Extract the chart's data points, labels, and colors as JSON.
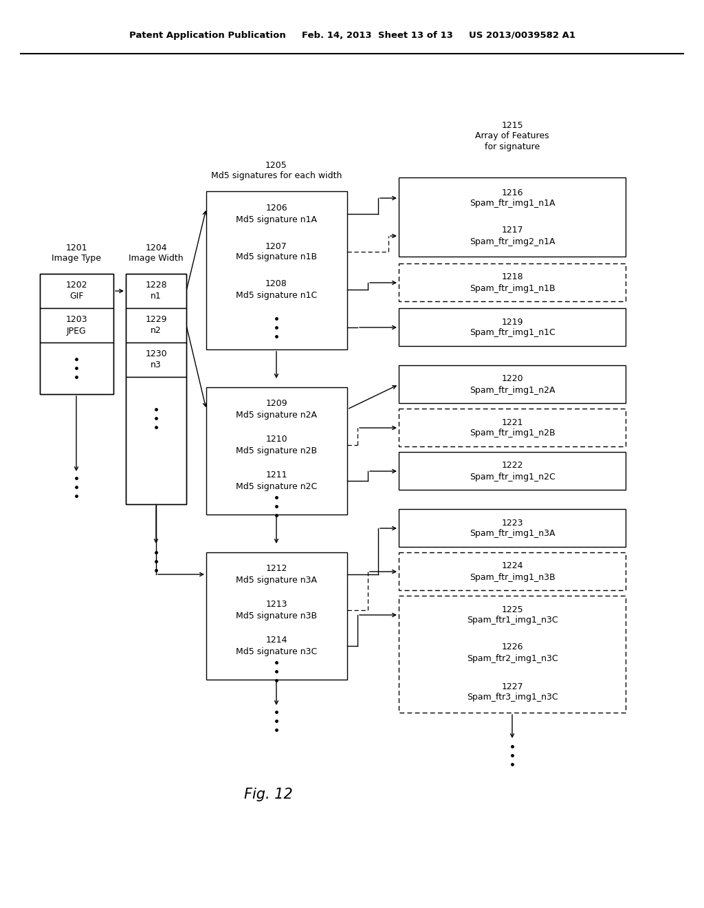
{
  "header": "Patent Application Publication     Feb. 14, 2013  Sheet 13 of 13     US 2013/0039582 A1",
  "fig_caption": "Fig. 12",
  "bg": "#ffffff",
  "labels": {
    "1201": "1201\nImage Type",
    "1202": "1202\nGIF",
    "1203": "1203\nJPEG",
    "1204": "1204\nImage Width",
    "1205": "1205\nMd5 signatures for each width",
    "1206": "1206\nMd5 signature n1A",
    "1207": "1207\nMd5 signature n1B",
    "1208": "1208\nMd5 signature n1C",
    "1209": "1209\nMd5 signature n2A",
    "1210": "1210\nMd5 signature n2B",
    "1211": "1211\nMd5 signature n2C",
    "1212": "1212\nMd5 signature n3A",
    "1213": "1213\nMd5 signature n3B",
    "1214": "1214\nMd5 signature n3C",
    "1215": "1215\nArray of Features\nfor signature",
    "1216": "1216\nSpam_ftr_img1_n1A",
    "1217": "1217\nSpam_ftr_img2_n1A",
    "1218": "1218\nSpam_ftr_img1_n1B",
    "1219": "1219\nSpam_ftr_img1_n1C",
    "1220": "1220\nSpam_ftr_img1_n2A",
    "1221": "1221\nSpam_ftr_img1_n2B",
    "1222": "1222\nSpam_ftr_img1_n2C",
    "1223": "1223\nSpam_ftr_img1_n3A",
    "1224": "1224\nSpam_ftr_img1_n3B",
    "1225": "1225\nSpam_ftr1_img1_n3C",
    "1226": "1226\nSpam_ftr2_img1_n3C",
    "1227": "1227\nSpam_ftr3_img1_n3C",
    "1228": "1228\nn1",
    "1229": "1229\nn2",
    "1230": "1230\nn3"
  }
}
